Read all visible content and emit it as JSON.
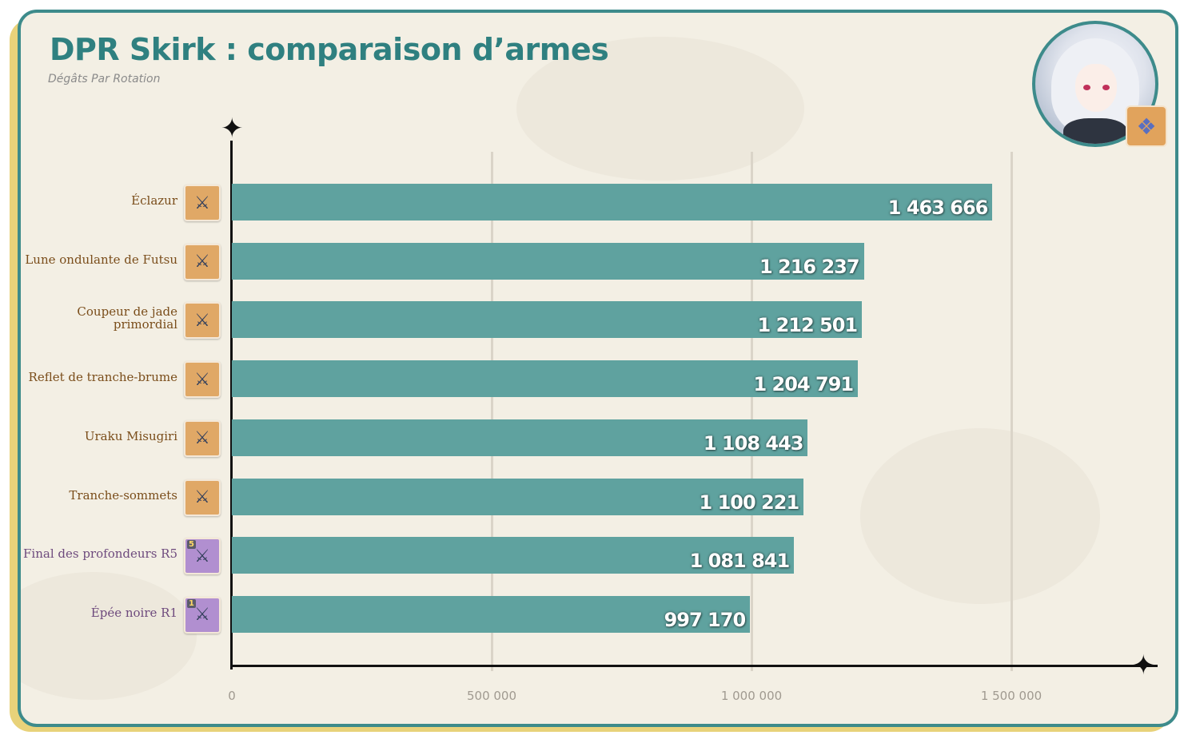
{
  "header": {
    "title": "DPR Skirk : comparaison d’armes",
    "subtitle": "Dégâts Par Rotation"
  },
  "colors": {
    "bar": "#5fa29f",
    "frame": "#3d8b8b",
    "frame_shadow": "#e8d27a",
    "background": "#f3efe4",
    "label": "#7a4d1a",
    "title": "#2f8080"
  },
  "icons": {
    "character_avatar": "skirk-portrait-icon",
    "element_badge": "cryo-crystal-icon",
    "weapon_icon": "sword-icon"
  },
  "chart_data": {
    "type": "bar",
    "orientation": "horizontal",
    "title": "DPR Skirk : comparaison d’armes",
    "subtitle": "Dégâts Par Rotation",
    "categories": [
      "Éclazur",
      "Lune ondulante de Futsu",
      "Coupeur de jade primordial",
      "Reflet de tranche-brume",
      "Uraku Misugiri",
      "Tranche-sommets",
      "Final des profondeurs R5",
      "Épée noire R1"
    ],
    "values": [
      1463666,
      1216237,
      1212501,
      1204791,
      1108443,
      1100221,
      1081841,
      997170
    ],
    "value_labels": [
      "1 463 666",
      "1 216 237",
      "1 212 501",
      "1 204 791",
      "1 108 443",
      "1 100 221",
      "1 081 841",
      "997 170"
    ],
    "weapon_rarity": [
      5,
      5,
      5,
      5,
      5,
      5,
      4,
      4
    ],
    "refinement_badges": [
      "",
      "",
      "",
      "",
      "",
      "",
      "5",
      "1"
    ],
    "xlim": [
      0,
      1750000
    ],
    "xticks": [
      0,
      500000,
      1000000,
      1500000
    ],
    "xtick_labels": [
      "0",
      "500 000",
      "1 000 000",
      "1 500 000"
    ],
    "grid": true,
    "legend": "none"
  }
}
